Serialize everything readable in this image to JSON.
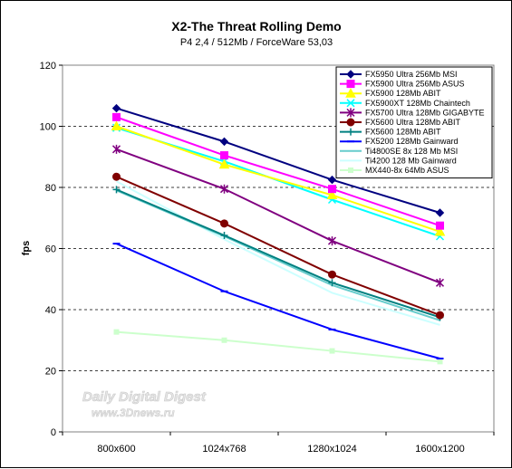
{
  "chart_data": {
    "type": "line",
    "title": "X2-The Threat Rolling Demo",
    "subtitle": "P4 2,4 / 512Mb / ForceWare 53,03",
    "xlabel": "",
    "ylabel": "fps",
    "categories": [
      "800x600",
      "1024x768",
      "1280x1024",
      "1600x1200"
    ],
    "ylim": [
      0,
      120
    ],
    "yticks": [
      0,
      20,
      40,
      60,
      80,
      100,
      120
    ],
    "grid": "horizontal-dashed",
    "legend_position": "top-right",
    "series": [
      {
        "name": "FX5950 Ultra 256Mb MSI",
        "values": [
          105.9,
          95.0,
          82.5,
          71.7
        ],
        "color": "#000080",
        "marker": "diamond"
      },
      {
        "name": "FX5900 Ultra 256Mb ASUS",
        "values": [
          103.0,
          90.5,
          79.5,
          67.5
        ],
        "color": "#ff00ff",
        "marker": "square"
      },
      {
        "name": "FX5900 128Mb ABIT",
        "values": [
          100.0,
          87.5,
          77.5,
          65.5
        ],
        "color": "#ffff00",
        "marker": "triangle"
      },
      {
        "name": "FX5900XT 128Mb Chaintech",
        "values": [
          99.5,
          88.5,
          76.0,
          64.0
        ],
        "color": "#00ffff",
        "marker": "x"
      },
      {
        "name": "FX5700 Ultra 128Mb GIGABYTE",
        "values": [
          92.5,
          79.5,
          62.5,
          48.8
        ],
        "color": "#800080",
        "marker": "star"
      },
      {
        "name": "FX5600 Ultra 128Mb ABIT",
        "values": [
          83.5,
          68.2,
          51.5,
          38.2
        ],
        "color": "#800000",
        "marker": "circle"
      },
      {
        "name": "FX5600 128Mb ABIT",
        "values": [
          79.3,
          64.3,
          48.8,
          37.5
        ],
        "color": "#008080",
        "marker": "plus"
      },
      {
        "name": "FX5200 128Mb Gainward",
        "values": [
          61.6,
          46.0,
          33.5,
          24.0
        ],
        "color": "#0000ff",
        "marker": "dash"
      },
      {
        "name": "Ti4800SE 8x 128 Mb MSI",
        "values": [
          79.0,
          64.0,
          48.0,
          36.5
        ],
        "color": "#66cccc",
        "marker": "none"
      },
      {
        "name": "Ti4200 128 Mb Gainward",
        "values": [
          82.0,
          63.0,
          45.5,
          35.0
        ],
        "color": "#ccffff",
        "marker": "none"
      },
      {
        "name": "MX440-8x 64Mb ASUS",
        "values": [
          32.7,
          30.0,
          26.5,
          23.0
        ],
        "color": "#ccffcc",
        "marker": "square-small"
      }
    ],
    "watermark": [
      "Daily Digital Digest",
      "www.3Dnews.ru"
    ]
  }
}
